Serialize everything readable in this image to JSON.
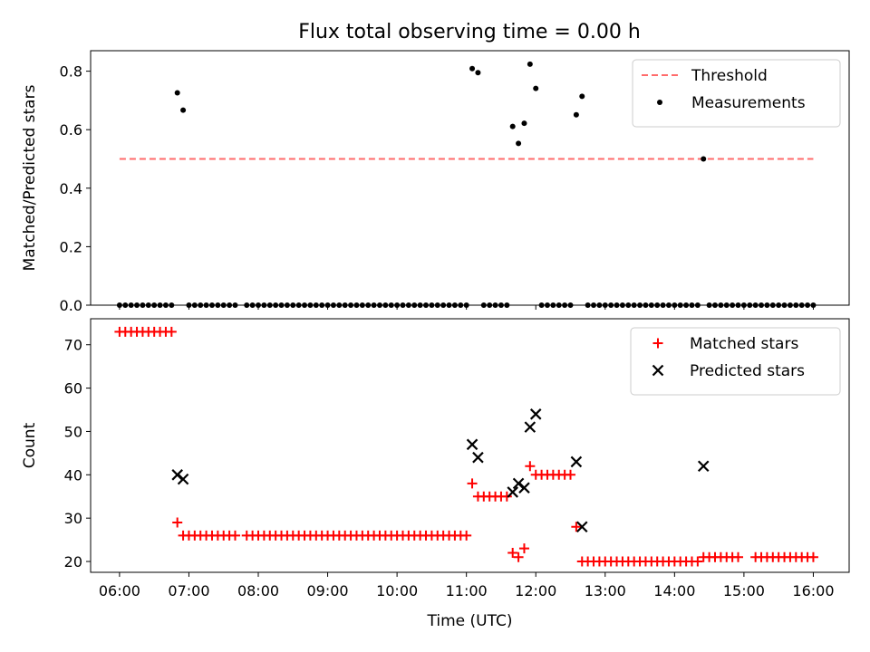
{
  "title": "Flux total observing time = 0.00 h",
  "chart_data": [
    {
      "type": "scatter",
      "ylabel": "Matched/Predicted stars",
      "xlabel": "",
      "xlim": [
        "05:35",
        "16:31"
      ],
      "ylim": [
        0,
        0.87
      ],
      "yticks": [
        "0.0",
        "0.2",
        "0.4",
        "0.6",
        "0.8"
      ],
      "legend": "top-right",
      "threshold": {
        "name": "Threshold",
        "value": 0.5,
        "x": [
          "06:00",
          "16:00"
        ],
        "color": "#ff6b6b"
      },
      "series": [
        {
          "name": "Measurements",
          "color": "#000000",
          "points": [
            [
              "06:00",
              0
            ],
            [
              "06:05",
              0
            ],
            [
              "06:10",
              0
            ],
            [
              "06:15",
              0
            ],
            [
              "06:20",
              0
            ],
            [
              "06:25",
              0
            ],
            [
              "06:30",
              0
            ],
            [
              "06:35",
              0
            ],
            [
              "06:40",
              0
            ],
            [
              "06:45",
              0
            ],
            [
              "06:50",
              0.726
            ],
            [
              "06:55",
              0.667
            ],
            [
              "07:00",
              0
            ],
            [
              "07:05",
              0
            ],
            [
              "07:10",
              0
            ],
            [
              "07:15",
              0
            ],
            [
              "07:20",
              0
            ],
            [
              "07:25",
              0
            ],
            [
              "07:30",
              0
            ],
            [
              "07:35",
              0
            ],
            [
              "07:40",
              0
            ],
            [
              "07:50",
              0
            ],
            [
              "07:55",
              0
            ],
            [
              "08:00",
              0
            ],
            [
              "08:05",
              0
            ],
            [
              "08:10",
              0
            ],
            [
              "08:15",
              0
            ],
            [
              "08:20",
              0
            ],
            [
              "08:25",
              0
            ],
            [
              "08:30",
              0
            ],
            [
              "08:35",
              0
            ],
            [
              "08:40",
              0
            ],
            [
              "08:45",
              0
            ],
            [
              "08:50",
              0
            ],
            [
              "08:55",
              0
            ],
            [
              "09:00",
              0
            ],
            [
              "09:05",
              0
            ],
            [
              "09:10",
              0
            ],
            [
              "09:15",
              0
            ],
            [
              "09:20",
              0
            ],
            [
              "09:25",
              0
            ],
            [
              "09:30",
              0
            ],
            [
              "09:35",
              0
            ],
            [
              "09:40",
              0
            ],
            [
              "09:45",
              0
            ],
            [
              "09:50",
              0
            ],
            [
              "09:55",
              0
            ],
            [
              "10:00",
              0
            ],
            [
              "10:05",
              0
            ],
            [
              "10:10",
              0
            ],
            [
              "10:15",
              0
            ],
            [
              "10:20",
              0
            ],
            [
              "10:25",
              0
            ],
            [
              "10:30",
              0
            ],
            [
              "10:35",
              0
            ],
            [
              "10:40",
              0
            ],
            [
              "10:45",
              0
            ],
            [
              "10:50",
              0
            ],
            [
              "10:55",
              0
            ],
            [
              "11:00",
              0
            ],
            [
              "11:05",
              0.809
            ],
            [
              "11:10",
              0.795
            ],
            [
              "11:15",
              0
            ],
            [
              "11:20",
              0
            ],
            [
              "11:25",
              0
            ],
            [
              "11:30",
              0
            ],
            [
              "11:35",
              0
            ],
            [
              "11:40",
              0.611
            ],
            [
              "11:45",
              0.553
            ],
            [
              "11:50",
              0.622
            ],
            [
              "11:55",
              0.824
            ],
            [
              "12:00",
              0.741
            ],
            [
              "12:05",
              0
            ],
            [
              "12:10",
              0
            ],
            [
              "12:15",
              0
            ],
            [
              "12:20",
              0
            ],
            [
              "12:25",
              0
            ],
            [
              "12:30",
              0
            ],
            [
              "12:35",
              0.651
            ],
            [
              "12:40",
              0.714
            ],
            [
              "12:45",
              0
            ],
            [
              "12:50",
              0
            ],
            [
              "12:55",
              0
            ],
            [
              "13:00",
              0
            ],
            [
              "13:05",
              0
            ],
            [
              "13:10",
              0
            ],
            [
              "13:15",
              0
            ],
            [
              "13:20",
              0
            ],
            [
              "13:25",
              0
            ],
            [
              "13:30",
              0
            ],
            [
              "13:35",
              0
            ],
            [
              "13:40",
              0
            ],
            [
              "13:45",
              0
            ],
            [
              "13:50",
              0
            ],
            [
              "13:55",
              0
            ],
            [
              "14:00",
              0
            ],
            [
              "14:05",
              0
            ],
            [
              "14:10",
              0
            ],
            [
              "14:15",
              0
            ],
            [
              "14:20",
              0
            ],
            [
              "14:25",
              0.5
            ],
            [
              "14:30",
              0
            ],
            [
              "14:35",
              0
            ],
            [
              "14:40",
              0
            ],
            [
              "14:45",
              0
            ],
            [
              "14:50",
              0
            ],
            [
              "14:55",
              0
            ],
            [
              "15:00",
              0
            ],
            [
              "15:05",
              0
            ],
            [
              "15:10",
              0
            ],
            [
              "15:15",
              0
            ],
            [
              "15:20",
              0
            ],
            [
              "15:25",
              0
            ],
            [
              "15:30",
              0
            ],
            [
              "15:35",
              0
            ],
            [
              "15:40",
              0
            ],
            [
              "15:45",
              0
            ],
            [
              "15:50",
              0
            ],
            [
              "15:55",
              0
            ],
            [
              "16:00",
              0
            ]
          ]
        }
      ]
    },
    {
      "type": "scatter",
      "ylabel": "Count",
      "xlabel": "Time (UTC)",
      "xlim": [
        "05:35",
        "16:31"
      ],
      "ylim": [
        17.5,
        76
      ],
      "yticks": [
        "20",
        "30",
        "40",
        "50",
        "60",
        "70"
      ],
      "xticks": [
        "06:00",
        "07:00",
        "08:00",
        "09:00",
        "10:00",
        "11:00",
        "12:00",
        "13:00",
        "14:00",
        "15:00",
        "16:00"
      ],
      "legend": "top-right",
      "series": [
        {
          "name": "Matched stars",
          "color": "#ff0000",
          "marker": "plus",
          "points": [
            [
              "06:00",
              73
            ],
            [
              "06:05",
              73
            ],
            [
              "06:10",
              73
            ],
            [
              "06:15",
              73
            ],
            [
              "06:20",
              73
            ],
            [
              "06:25",
              73
            ],
            [
              "06:30",
              73
            ],
            [
              "06:35",
              73
            ],
            [
              "06:40",
              73
            ],
            [
              "06:45",
              73
            ],
            [
              "06:50",
              29
            ],
            [
              "06:55",
              26
            ],
            [
              "07:00",
              26
            ],
            [
              "07:05",
              26
            ],
            [
              "07:10",
              26
            ],
            [
              "07:15",
              26
            ],
            [
              "07:20",
              26
            ],
            [
              "07:25",
              26
            ],
            [
              "07:30",
              26
            ],
            [
              "07:35",
              26
            ],
            [
              "07:40",
              26
            ],
            [
              "07:50",
              26
            ],
            [
              "07:55",
              26
            ],
            [
              "08:00",
              26
            ],
            [
              "08:05",
              26
            ],
            [
              "08:10",
              26
            ],
            [
              "08:15",
              26
            ],
            [
              "08:20",
              26
            ],
            [
              "08:25",
              26
            ],
            [
              "08:30",
              26
            ],
            [
              "08:35",
              26
            ],
            [
              "08:40",
              26
            ],
            [
              "08:45",
              26
            ],
            [
              "08:50",
              26
            ],
            [
              "08:55",
              26
            ],
            [
              "09:00",
              26
            ],
            [
              "09:05",
              26
            ],
            [
              "09:10",
              26
            ],
            [
              "09:15",
              26
            ],
            [
              "09:20",
              26
            ],
            [
              "09:25",
              26
            ],
            [
              "09:30",
              26
            ],
            [
              "09:35",
              26
            ],
            [
              "09:40",
              26
            ],
            [
              "09:45",
              26
            ],
            [
              "09:50",
              26
            ],
            [
              "09:55",
              26
            ],
            [
              "10:00",
              26
            ],
            [
              "10:05",
              26
            ],
            [
              "10:10",
              26
            ],
            [
              "10:15",
              26
            ],
            [
              "10:20",
              26
            ],
            [
              "10:25",
              26
            ],
            [
              "10:30",
              26
            ],
            [
              "10:35",
              26
            ],
            [
              "10:40",
              26
            ],
            [
              "10:45",
              26
            ],
            [
              "10:50",
              26
            ],
            [
              "10:55",
              26
            ],
            [
              "11:00",
              26
            ],
            [
              "11:05",
              38
            ],
            [
              "11:10",
              35
            ],
            [
              "11:15",
              35
            ],
            [
              "11:20",
              35
            ],
            [
              "11:25",
              35
            ],
            [
              "11:30",
              35
            ],
            [
              "11:35",
              35
            ],
            [
              "11:40",
              22
            ],
            [
              "11:45",
              21
            ],
            [
              "11:50",
              23
            ],
            [
              "11:55",
              42
            ],
            [
              "12:00",
              40
            ],
            [
              "12:05",
              40
            ],
            [
              "12:10",
              40
            ],
            [
              "12:15",
              40
            ],
            [
              "12:20",
              40
            ],
            [
              "12:25",
              40
            ],
            [
              "12:30",
              40
            ],
            [
              "12:35",
              28
            ],
            [
              "12:40",
              20
            ],
            [
              "12:45",
              20
            ],
            [
              "12:50",
              20
            ],
            [
              "12:55",
              20
            ],
            [
              "13:00",
              20
            ],
            [
              "13:05",
              20
            ],
            [
              "13:10",
              20
            ],
            [
              "13:15",
              20
            ],
            [
              "13:20",
              20
            ],
            [
              "13:25",
              20
            ],
            [
              "13:30",
              20
            ],
            [
              "13:35",
              20
            ],
            [
              "13:40",
              20
            ],
            [
              "13:45",
              20
            ],
            [
              "13:50",
              20
            ],
            [
              "13:55",
              20
            ],
            [
              "14:00",
              20
            ],
            [
              "14:05",
              20
            ],
            [
              "14:10",
              20
            ],
            [
              "14:15",
              20
            ],
            [
              "14:20",
              20
            ],
            [
              "14:25",
              21
            ],
            [
              "14:30",
              21
            ],
            [
              "14:35",
              21
            ],
            [
              "14:40",
              21
            ],
            [
              "14:45",
              21
            ],
            [
              "14:50",
              21
            ],
            [
              "14:55",
              21
            ],
            [
              "15:10",
              21
            ],
            [
              "15:15",
              21
            ],
            [
              "15:20",
              21
            ],
            [
              "15:25",
              21
            ],
            [
              "15:30",
              21
            ],
            [
              "15:35",
              21
            ],
            [
              "15:40",
              21
            ],
            [
              "15:45",
              21
            ],
            [
              "15:50",
              21
            ],
            [
              "15:55",
              21
            ],
            [
              "16:00",
              21
            ]
          ]
        },
        {
          "name": "Predicted stars",
          "color": "#000000",
          "marker": "x",
          "points": [
            [
              "06:50",
              40
            ],
            [
              "06:55",
              39
            ],
            [
              "11:05",
              47
            ],
            [
              "11:10",
              44
            ],
            [
              "11:40",
              36
            ],
            [
              "11:45",
              38
            ],
            [
              "11:50",
              37
            ],
            [
              "11:55",
              51
            ],
            [
              "12:00",
              54
            ],
            [
              "12:35",
              43
            ],
            [
              "12:40",
              28
            ],
            [
              "14:25",
              42
            ]
          ]
        }
      ]
    }
  ]
}
